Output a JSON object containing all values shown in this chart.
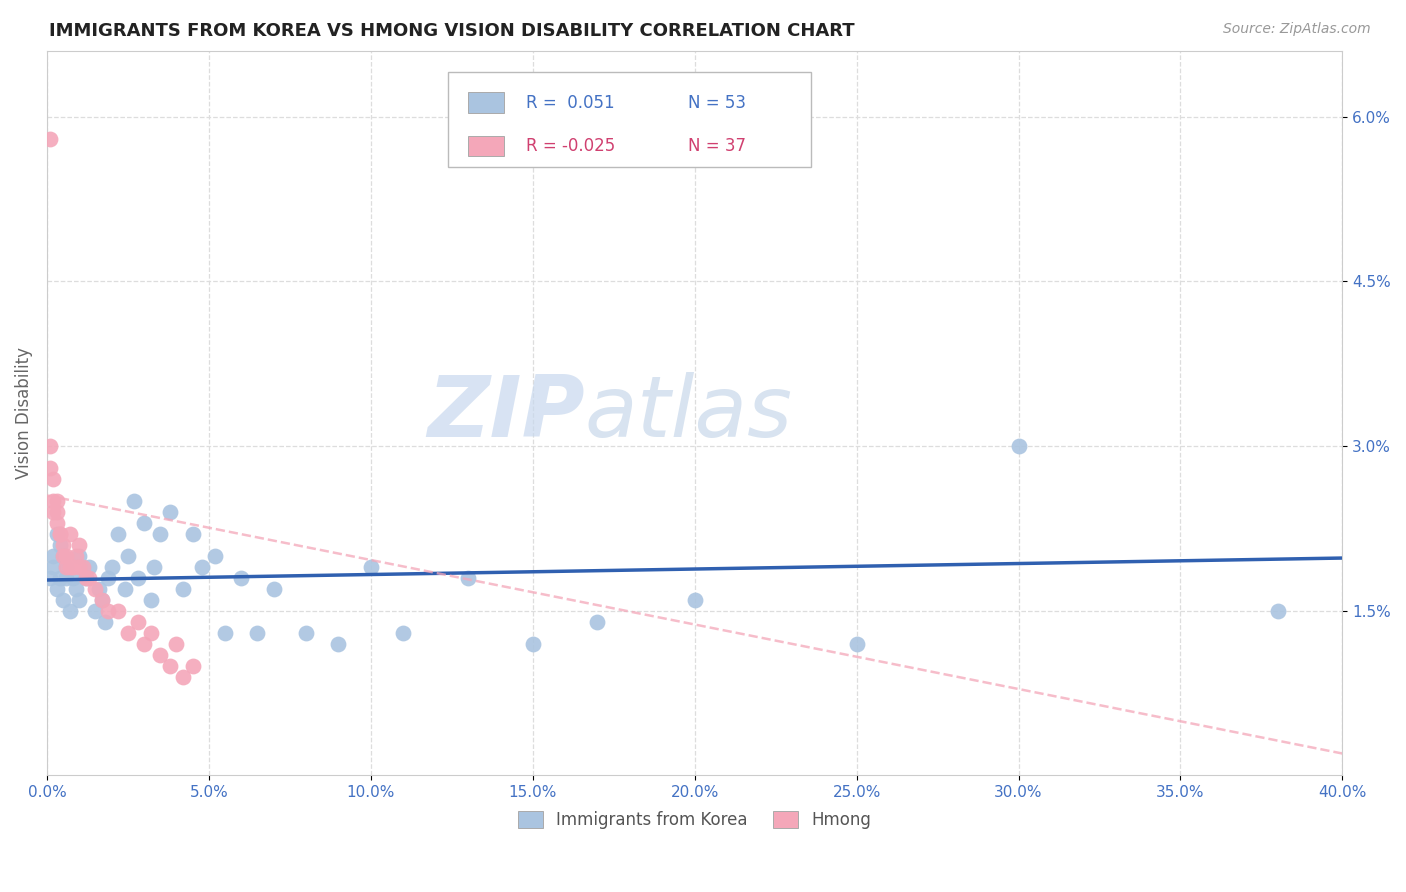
{
  "title": "IMMIGRANTS FROM KOREA VS HMONG VISION DISABILITY CORRELATION CHART",
  "source": "Source: ZipAtlas.com",
  "ylabel": "Vision Disability",
  "x_label_korea": "Immigrants from Korea",
  "x_label_hmong": "Hmong",
  "xlim": [
    0.0,
    0.4
  ],
  "ylim": [
    0.0,
    0.066
  ],
  "xticks": [
    0.0,
    0.05,
    0.1,
    0.15,
    0.2,
    0.25,
    0.3,
    0.35,
    0.4
  ],
  "yticks": [
    0.015,
    0.03,
    0.045,
    0.06
  ],
  "ytick_labels": [
    "1.5%",
    "3.0%",
    "4.5%",
    "6.0%"
  ],
  "xtick_labels": [
    "0.0%",
    "5.0%",
    "10.0%",
    "15.0%",
    "20.0%",
    "25.0%",
    "30.0%",
    "35.0%",
    "40.0%"
  ],
  "korea_R": 0.051,
  "korea_N": 53,
  "hmong_R": -0.025,
  "hmong_N": 37,
  "korea_color": "#aac4e0",
  "hmong_color": "#f4a7b9",
  "korea_line_color": "#3060b0",
  "hmong_line_color": "#f4a7b9",
  "watermark_zip": "ZIP",
  "watermark_atlas": "atlas",
  "background_color": "#ffffff",
  "grid_color": "#dddddd",
  "tick_color": "#4472c4",
  "title_color": "#222222",
  "legend_r1_color": "#4472c4",
  "legend_r2_color": "#d04070",
  "korea_x": [
    0.001,
    0.002,
    0.002,
    0.003,
    0.003,
    0.004,
    0.004,
    0.005,
    0.005,
    0.006,
    0.006,
    0.007,
    0.008,
    0.009,
    0.01,
    0.01,
    0.012,
    0.013,
    0.015,
    0.016,
    0.017,
    0.018,
    0.019,
    0.02,
    0.022,
    0.024,
    0.025,
    0.027,
    0.028,
    0.03,
    0.032,
    0.033,
    0.035,
    0.038,
    0.042,
    0.045,
    0.048,
    0.052,
    0.055,
    0.06,
    0.065,
    0.07,
    0.08,
    0.09,
    0.1,
    0.11,
    0.13,
    0.15,
    0.17,
    0.2,
    0.25,
    0.3,
    0.38
  ],
  "korea_y": [
    0.018,
    0.02,
    0.019,
    0.022,
    0.017,
    0.021,
    0.018,
    0.016,
    0.02,
    0.019,
    0.018,
    0.015,
    0.018,
    0.017,
    0.02,
    0.016,
    0.018,
    0.019,
    0.015,
    0.017,
    0.016,
    0.014,
    0.018,
    0.019,
    0.022,
    0.017,
    0.02,
    0.025,
    0.018,
    0.023,
    0.016,
    0.019,
    0.022,
    0.024,
    0.017,
    0.022,
    0.019,
    0.02,
    0.013,
    0.018,
    0.013,
    0.017,
    0.013,
    0.012,
    0.019,
    0.013,
    0.018,
    0.012,
    0.014,
    0.016,
    0.012,
    0.03,
    0.015
  ],
  "hmong_x": [
    0.001,
    0.001,
    0.002,
    0.002,
    0.002,
    0.003,
    0.003,
    0.003,
    0.004,
    0.004,
    0.005,
    0.005,
    0.006,
    0.006,
    0.007,
    0.007,
    0.008,
    0.009,
    0.01,
    0.01,
    0.011,
    0.012,
    0.013,
    0.015,
    0.017,
    0.019,
    0.022,
    0.025,
    0.028,
    0.03,
    0.032,
    0.035,
    0.038,
    0.04,
    0.042,
    0.045,
    0.001
  ],
  "hmong_y": [
    0.058,
    0.03,
    0.027,
    0.025,
    0.024,
    0.025,
    0.024,
    0.023,
    0.022,
    0.022,
    0.021,
    0.02,
    0.02,
    0.019,
    0.022,
    0.019,
    0.019,
    0.02,
    0.021,
    0.019,
    0.019,
    0.018,
    0.018,
    0.017,
    0.016,
    0.015,
    0.015,
    0.013,
    0.014,
    0.012,
    0.013,
    0.011,
    0.01,
    0.012,
    0.009,
    0.01,
    0.028
  ],
  "korea_trend_x": [
    0.0,
    0.4
  ],
  "korea_trend_y": [
    0.0178,
    0.0198
  ],
  "hmong_trend_x": [
    0.0,
    0.4
  ],
  "hmong_trend_y": [
    0.0255,
    0.002
  ]
}
